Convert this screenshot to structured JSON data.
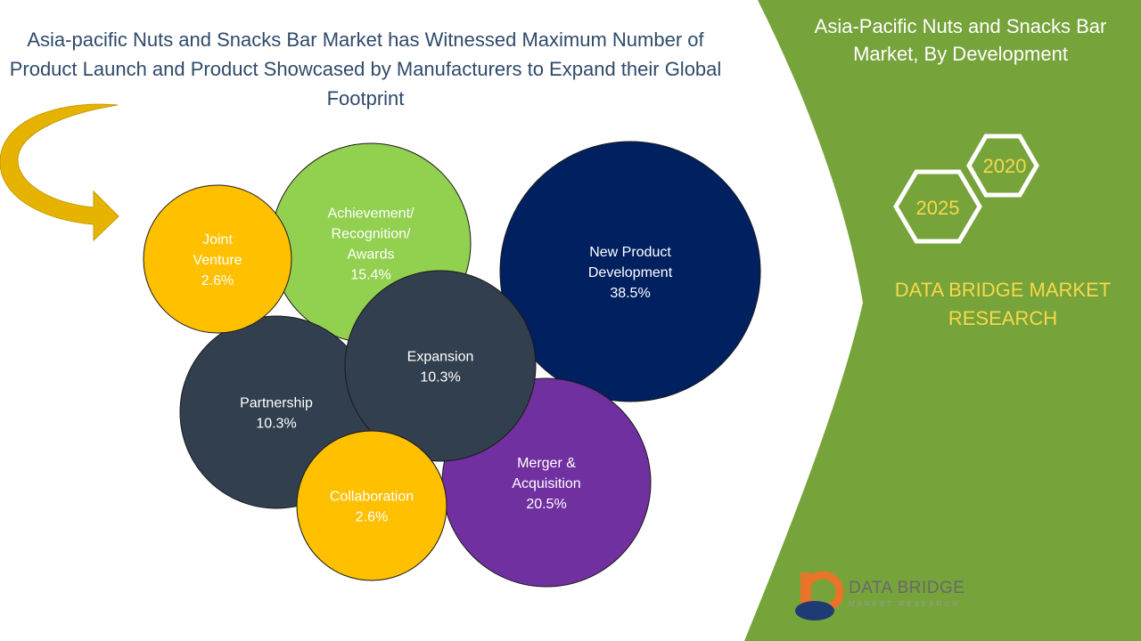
{
  "title": "Asia-pacific Nuts and Snacks Bar Market has Witnessed Maximum Number of Product Launch and Product Showcased by Manufacturers to Expand their Global Footprint",
  "side_panel": {
    "title": "Asia-Pacific Nuts and Snacks Bar Market, By Development",
    "year_start": "2020",
    "year_end": "2025",
    "brand": "DATA BRIDGE MARKET RESEARCH"
  },
  "logo": {
    "wordmark": "DATA BRIDGE",
    "subtitle": "MARKET RESEARCH"
  },
  "colors": {
    "panel_green": "#76a33a",
    "brand_yellow": "#f7d84a",
    "arrow_gold": "#e6b400"
  },
  "chart_data": {
    "type": "bubble",
    "unit": "%",
    "series": [
      {
        "label": [
          "Joint",
          "Venture"
        ],
        "value": 2.6,
        "display": "2.6%",
        "color": "#ffc000"
      },
      {
        "label": [
          "Achievement/",
          "Recognition/",
          "Awards"
        ],
        "value": 15.4,
        "display": "15.4%",
        "color": "#92d050"
      },
      {
        "label": [
          "New Product",
          "Development"
        ],
        "value": 38.5,
        "display": "38.5%",
        "color": "#002060"
      },
      {
        "label": [
          "Partnership"
        ],
        "value": 10.3,
        "display": "10.3%",
        "color": "#323f4f"
      },
      {
        "label": [
          "Expansion"
        ],
        "value": 10.3,
        "display": "10.3%",
        "color": "#323f4f"
      },
      {
        "label": [
          "Merger &",
          "Acquisition"
        ],
        "value": 20.5,
        "display": "20.5%",
        "color": "#7030a0"
      },
      {
        "label": [
          "Collaboration"
        ],
        "value": 2.6,
        "display": "2.6%",
        "color": "#ffc000"
      }
    ]
  }
}
